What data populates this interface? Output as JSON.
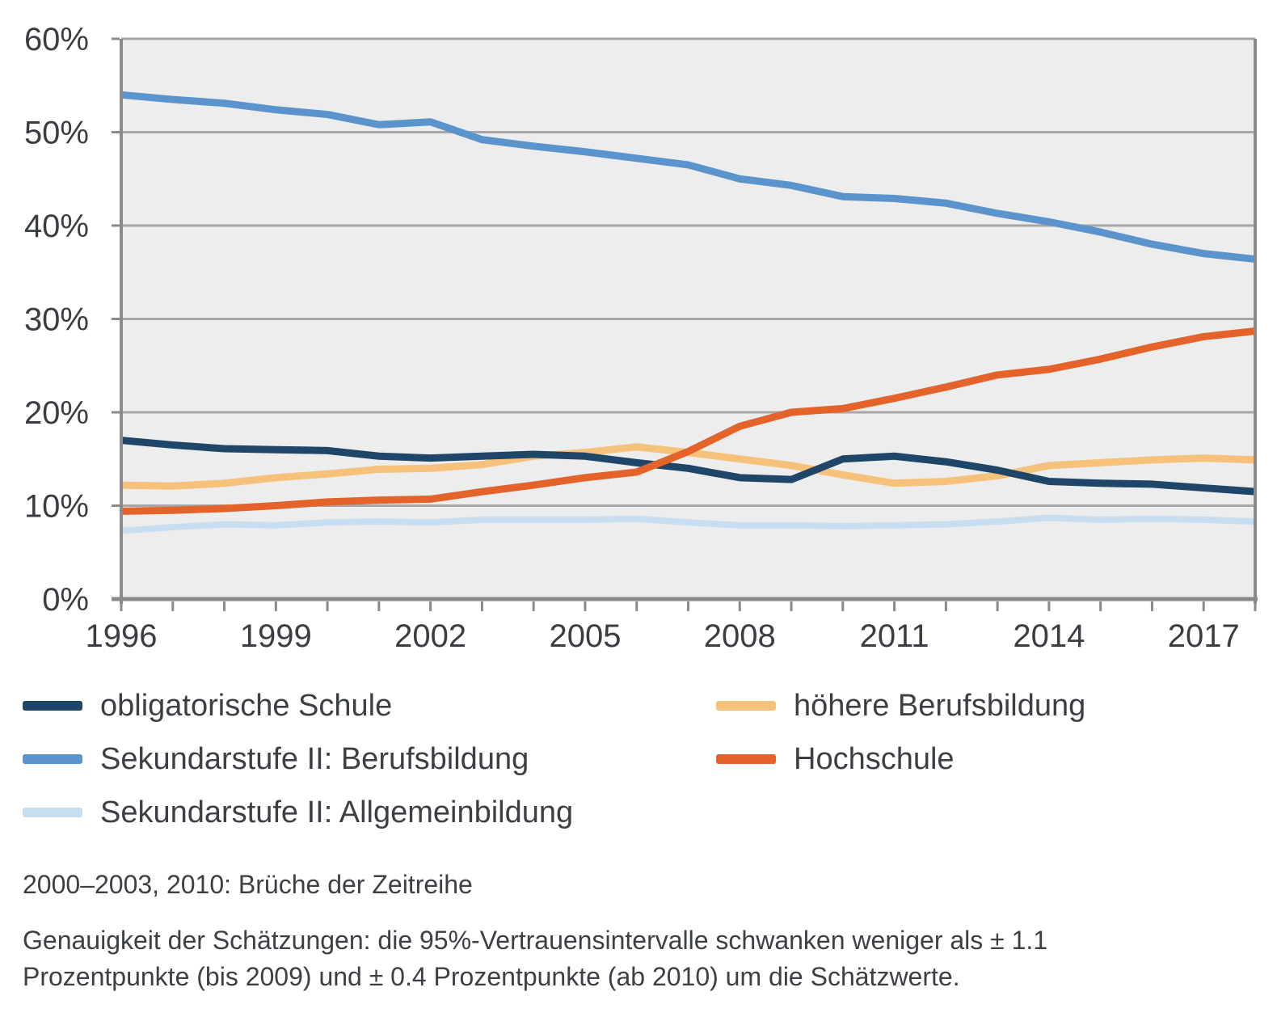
{
  "chart_data": {
    "type": "line",
    "title": "",
    "xlabel": "",
    "ylabel": "",
    "x": [
      1996,
      1997,
      1998,
      1999,
      2000,
      2001,
      2002,
      2003,
      2004,
      2005,
      2006,
      2007,
      2008,
      2009,
      2010,
      2011,
      2012,
      2013,
      2014,
      2015,
      2016,
      2017,
      2018
    ],
    "x_range": [
      1996,
      2018
    ],
    "xtick_labels": [
      "1996",
      "1999",
      "2002",
      "2005",
      "2008",
      "2011",
      "2014",
      "2017"
    ],
    "xtick_values": [
      1996,
      1999,
      2002,
      2005,
      2008,
      2011,
      2014,
      2017
    ],
    "ylim": [
      0,
      60
    ],
    "ytick_step": 10,
    "ytick_suffix": "%",
    "grid": "horizontal",
    "legend_position": "bottom-two-columns",
    "series": [
      {
        "name": "obligatorische Schule",
        "color": "#1f4568",
        "width": 9,
        "values": [
          17.0,
          16.5,
          16.1,
          16.0,
          15.9,
          15.3,
          15.1,
          15.3,
          15.5,
          15.3,
          14.6,
          14.0,
          13.0,
          12.8,
          15.0,
          15.3,
          14.7,
          13.8,
          12.6,
          12.4,
          12.3,
          11.9,
          11.5
        ]
      },
      {
        "name": "Sekundarstufe II: Berufsbildung",
        "color": "#5b94cc",
        "width": 9,
        "values": [
          54.0,
          53.5,
          53.1,
          52.4,
          51.9,
          50.8,
          51.1,
          49.2,
          48.5,
          47.9,
          47.2,
          46.5,
          45.0,
          44.3,
          43.1,
          42.9,
          42.4,
          41.3,
          40.4,
          39.3,
          38.0,
          37.0,
          36.4
        ]
      },
      {
        "name": "Sekundarstufe II: Allgemeinbildung",
        "color": "#c9ddf0",
        "width": 8,
        "values": [
          7.3,
          7.7,
          8.0,
          7.9,
          8.2,
          8.3,
          8.2,
          8.5,
          8.5,
          8.5,
          8.6,
          8.2,
          7.9,
          7.9,
          7.8,
          7.9,
          8.0,
          8.3,
          8.7,
          8.5,
          8.6,
          8.5,
          8.3
        ]
      },
      {
        "name": "höhere Berufsbildung",
        "color": "#f6c27b",
        "width": 9,
        "values": [
          12.2,
          12.1,
          12.4,
          13.0,
          13.4,
          13.9,
          14.0,
          14.4,
          15.3,
          15.7,
          16.3,
          15.7,
          15.0,
          14.3,
          13.3,
          12.4,
          12.6,
          13.2,
          14.3,
          14.6,
          14.9,
          15.1,
          14.9
        ]
      },
      {
        "name": "Hochschule",
        "color": "#e4632b",
        "width": 9,
        "values": [
          9.4,
          9.5,
          9.7,
          10.0,
          10.4,
          10.6,
          10.7,
          11.5,
          12.2,
          13.0,
          13.6,
          15.8,
          18.5,
          20.0,
          20.4,
          21.5,
          22.7,
          24.0,
          24.6,
          25.7,
          27.0,
          28.1,
          28.7
        ]
      }
    ],
    "draw_order": [
      2,
      3,
      1,
      0,
      4
    ],
    "colors": {
      "plot_bg": "#ededed",
      "grid": "#a6a6a6",
      "axis": "#8a8a8a",
      "label": "#3a3e42"
    }
  },
  "legend": {
    "items": [
      {
        "label": "obligatorische Schule",
        "series": 0
      },
      {
        "label": "höhere Berufsbildung",
        "series": 3
      },
      {
        "label": "Sekundarstufe II: Berufsbildung",
        "series": 1
      },
      {
        "label": "Hochschule",
        "series": 4
      },
      {
        "label": "Sekundarstufe II: Allgemeinbildung",
        "series": 2
      }
    ]
  },
  "footnotes": {
    "line1": "2000–2003, 2010: Brüche der Zeitreihe",
    "line2": "Genauigkeit der Schätzungen: die 95%-Vertrauensintervalle schwanken weniger als ± 1.1",
    "line3": "Prozentpunkte (bis 2009) und ± 0.4 Prozentpunkte (ab 2010) um die Schätzwerte."
  }
}
